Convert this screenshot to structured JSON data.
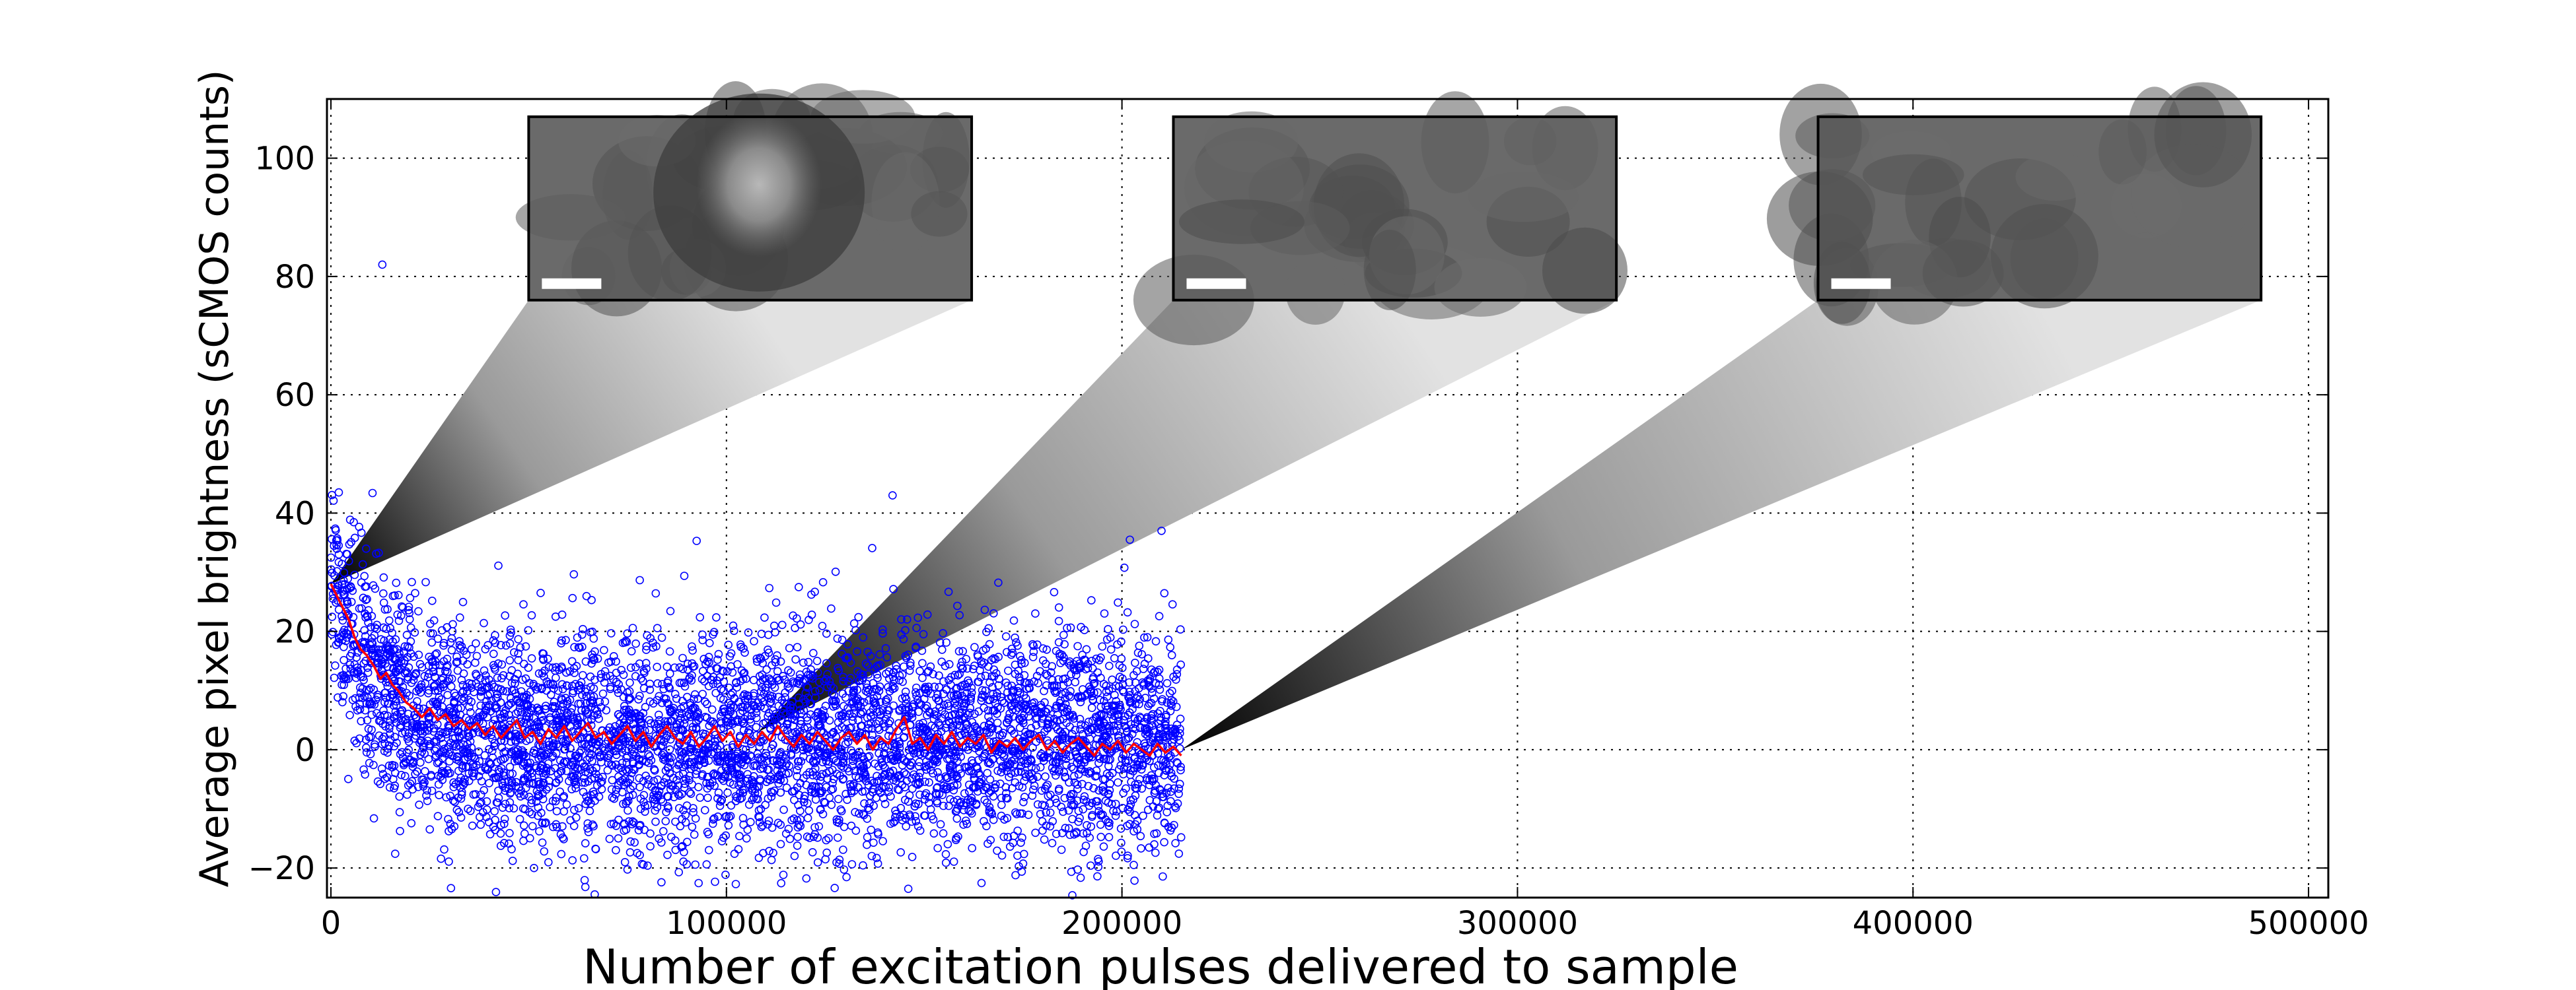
{
  "chart_data": {
    "type": "scatter",
    "title": "",
    "xlabel": "Number of excitation pulses delivered to sample",
    "ylabel": "Average pixel brightness (sCMOS counts)",
    "xlim": [
      -1000,
      505000
    ],
    "ylim": [
      -25,
      110
    ],
    "xticks": [
      0,
      100000,
      200000,
      300000,
      400000,
      500000
    ],
    "yticks": [
      -20,
      0,
      20,
      40,
      60,
      80,
      100
    ],
    "grid": true,
    "series": [
      {
        "kind": "scatter",
        "marker": "open-circle",
        "color": "#0000ff",
        "x_range": [
          0,
          215000
        ],
        "trend": {
          "start": 28,
          "plateau": 1.5,
          "decay_scale": 12000
        },
        "spread_sd": 9,
        "approx_points": 5000,
        "outliers": [
          {
            "x": 13000,
            "y": 82
          },
          {
            "x": 142000,
            "y": 43
          },
          {
            "x": 202000,
            "y": 35.5
          },
          {
            "x": 210000,
            "y": 37
          },
          {
            "x": 2000,
            "y": 43.5
          }
        ]
      },
      {
        "kind": "line",
        "color": "#ff0000",
        "label_text": "",
        "points": [
          [
            0,
            28
          ],
          [
            1500,
            26
          ],
          [
            3000,
            24
          ],
          [
            4500,
            22
          ],
          [
            6000,
            19
          ],
          [
            7500,
            17
          ],
          [
            9000,
            16
          ],
          [
            11000,
            14
          ],
          [
            12500,
            12
          ],
          [
            14000,
            13
          ],
          [
            15500,
            11
          ],
          [
            17000,
            10
          ],
          [
            19000,
            8
          ],
          [
            21000,
            7
          ],
          [
            23000,
            5.5
          ],
          [
            25000,
            7
          ],
          [
            27000,
            5
          ],
          [
            29000,
            6
          ],
          [
            31000,
            4
          ],
          [
            33000,
            5
          ],
          [
            35000,
            3.5
          ],
          [
            37000,
            4.5
          ],
          [
            39000,
            2.5
          ],
          [
            41000,
            4
          ],
          [
            43000,
            2
          ],
          [
            45000,
            3.5
          ],
          [
            47000,
            5
          ],
          [
            49000,
            2
          ],
          [
            51000,
            3
          ],
          [
            53000,
            1
          ],
          [
            55000,
            3.5
          ],
          [
            57000,
            2
          ],
          [
            59000,
            4
          ],
          [
            61000,
            1.5
          ],
          [
            63000,
            3
          ],
          [
            65000,
            4.5
          ],
          [
            67000,
            2
          ],
          [
            69000,
            3
          ],
          [
            71000,
            1
          ],
          [
            73000,
            2.5
          ],
          [
            75000,
            4
          ],
          [
            77000,
            1.5
          ],
          [
            79000,
            3
          ],
          [
            81000,
            0.5
          ],
          [
            83000,
            2.5
          ],
          [
            85000,
            4
          ],
          [
            87000,
            2
          ],
          [
            89000,
            1
          ],
          [
            91000,
            3
          ],
          [
            93000,
            0.5
          ],
          [
            95000,
            2
          ],
          [
            97000,
            4
          ],
          [
            99000,
            1.5
          ],
          [
            101000,
            3
          ],
          [
            103000,
            0.5
          ],
          [
            105000,
            2.5
          ],
          [
            107000,
            1
          ],
          [
            109000,
            3
          ],
          [
            111000,
            1.5
          ],
          [
            113000,
            4
          ],
          [
            115000,
            2
          ],
          [
            117000,
            0.5
          ],
          [
            119000,
            2.5
          ],
          [
            121000,
            1
          ],
          [
            123000,
            3
          ],
          [
            125000,
            1.5
          ],
          [
            127000,
            0
          ],
          [
            129000,
            2
          ],
          [
            131000,
            3
          ],
          [
            133000,
            1
          ],
          [
            135000,
            2.5
          ],
          [
            137000,
            0
          ],
          [
            139000,
            2
          ],
          [
            141000,
            1
          ],
          [
            143000,
            3.5
          ],
          [
            145000,
            5.5
          ],
          [
            147000,
            1
          ],
          [
            149000,
            2
          ],
          [
            151000,
            0
          ],
          [
            153000,
            2.5
          ],
          [
            155000,
            1
          ],
          [
            157000,
            3
          ],
          [
            159000,
            0.5
          ],
          [
            161000,
            2
          ],
          [
            163000,
            1
          ],
          [
            165000,
            2.5
          ],
          [
            167000,
            -0.5
          ],
          [
            169000,
            1.5
          ],
          [
            171000,
            0.5
          ],
          [
            173000,
            2
          ],
          [
            175000,
            0
          ],
          [
            177000,
            1.5
          ],
          [
            179000,
            2.5
          ],
          [
            181000,
            0
          ],
          [
            183000,
            1.5
          ],
          [
            185000,
            -0.5
          ],
          [
            187000,
            1
          ],
          [
            189000,
            2
          ],
          [
            191000,
            0.5
          ],
          [
            193000,
            -1
          ],
          [
            195000,
            1
          ],
          [
            197000,
            0
          ],
          [
            199000,
            1.5
          ],
          [
            201000,
            -0.5
          ],
          [
            203000,
            1
          ],
          [
            205000,
            0
          ],
          [
            207000,
            -1
          ],
          [
            209000,
            1
          ],
          [
            211000,
            -0.5
          ],
          [
            213000,
            0.5
          ],
          [
            215000,
            -1
          ]
        ]
      }
    ],
    "annotations": [
      {
        "kind": "image-inset",
        "image_content": "bright-spot",
        "anchor": {
          "x": 0,
          "y": 28
        },
        "box": {
          "x0": 50000,
          "x1": 162000,
          "y0": 76,
          "y1": 107
        }
      },
      {
        "kind": "image-inset",
        "image_content": "faint-noise",
        "anchor": {
          "x": 108000,
          "y": 3
        },
        "box": {
          "x0": 213000,
          "x1": 325000,
          "y0": 76,
          "y1": 107
        }
      },
      {
        "kind": "image-inset",
        "image_content": "background-noise",
        "anchor": {
          "x": 215000,
          "y": 0
        },
        "box": {
          "x0": 376000,
          "x1": 488000,
          "y0": 76,
          "y1": 107
        }
      }
    ]
  }
}
